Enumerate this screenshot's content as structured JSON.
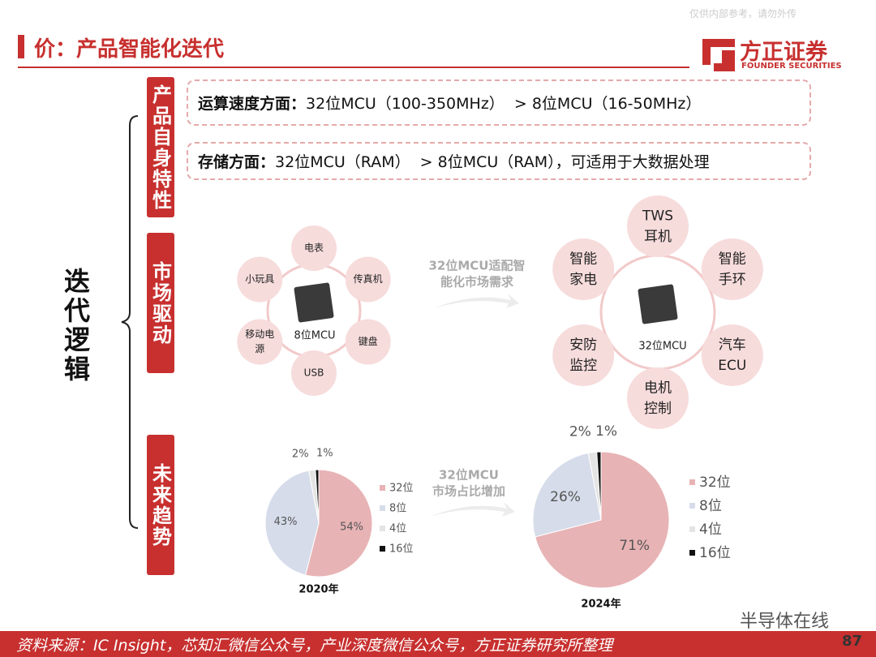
{
  "header": {
    "title": "价：产品智能化迭代",
    "watermark": "仅供内部参考，请勿外传",
    "logo_cn": "方正证券",
    "logo_en": "FOUNDER SECURITIES"
  },
  "main_label": "迭代逻辑",
  "sections": [
    "产品自身特性",
    "市场驱动",
    "未来趋势"
  ],
  "features": [
    {
      "bold": "运算速度方面：",
      "text": "32位MCU（100-350MHz）  > 8位MCU（16-50MHz）"
    },
    {
      "bold": "存储方面：",
      "text": "32位MCU（RAM）  > 8位MCU（RAM），可适用于大数据处理"
    }
  ],
  "market": {
    "left": {
      "center": "8位MCU",
      "apps": [
        [
          "电表"
        ],
        [
          "传真机"
        ],
        [
          "键盘"
        ],
        [
          "USB"
        ],
        [
          "移动电",
          "源"
        ],
        [
          "小玩具"
        ]
      ]
    },
    "arrow": [
      "32位MCU适配智",
      "能化市场需求"
    ],
    "right": {
      "center": "32位MCU",
      "apps": [
        [
          "TWS",
          "耳机"
        ],
        [
          "智能",
          "手环"
        ],
        [
          "汽车",
          "ECU"
        ],
        [
          "电机",
          "控制"
        ],
        [
          "安防",
          "监控"
        ],
        [
          "智能",
          "家电"
        ]
      ]
    }
  },
  "pies": [
    {
      "title": "2020年",
      "categories": [
        "32位",
        "8位",
        "4位",
        "16位"
      ],
      "values": [
        54,
        43,
        2,
        1
      ],
      "value_labels": [
        "54%",
        "43%",
        "2%",
        "1%"
      ],
      "colors": [
        "#e8b3b5",
        "#d6dcea",
        "#e4e4e4",
        "#111111"
      ]
    },
    {
      "title": "2024年",
      "categories": [
        "32位",
        "8位",
        "4位",
        "16位"
      ],
      "values": [
        71,
        26,
        2,
        1
      ],
      "value_labels": [
        "71%",
        "26%",
        "2%",
        "1%"
      ],
      "colors": [
        "#e8b3b5",
        "#d6dcea",
        "#e4e4e4",
        "#111111"
      ]
    }
  ],
  "pie_arrow": [
    "32位MCU",
    "市场占比增加"
  ],
  "footer": {
    "source": "资料来源：IC Insight，芯知汇微信公众号，产业深度微信公众号，方正证券研究所整理",
    "wechat": "半导体在线",
    "page": "87"
  }
}
